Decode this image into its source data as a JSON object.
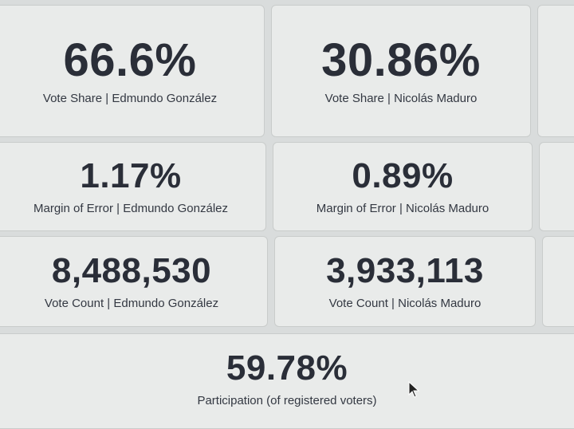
{
  "cards": [
    {
      "value": "66.6%",
      "label": "Vote Share | Edmundo González"
    },
    {
      "value": "30.86%",
      "label": "Vote Share | Nicolás Maduro"
    },
    {
      "value": "1.17%",
      "label": "Margin of Error | Edmundo González"
    },
    {
      "value": "0.89%",
      "label": "Margin of Error | Nicolás Maduro"
    },
    {
      "value": "8,488,530",
      "label": "Vote Count | Edmundo González"
    },
    {
      "value": "3,933,113",
      "label": "Vote Count | Nicolás Maduro"
    },
    {
      "value": "59.78%",
      "label": "Participation (of registered voters)"
    }
  ]
}
